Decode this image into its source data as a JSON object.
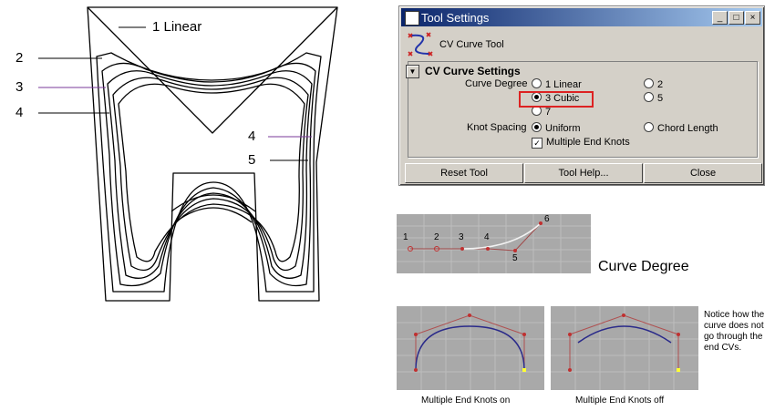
{
  "left_figure": {
    "label_linear": "1 Linear",
    "label_2": "2",
    "label_3": "3",
    "label_4_left": "4",
    "label_4_right": "4",
    "label_5": "5"
  },
  "tool_settings": {
    "title": "Tool Settings",
    "tool_name": "CV Curve Tool",
    "section_title": "CV Curve Settings",
    "curve_degree_label": "Curve Degree",
    "degree_options": [
      "1 Linear",
      "2",
      "3 Cubic",
      "5",
      "7"
    ],
    "selected_degree": "3 Cubic",
    "knot_spacing_label": "Knot Spacing",
    "knot_options": [
      "Uniform",
      "Chord Length"
    ],
    "selected_knot": "Uniform",
    "multiple_end_knots_label": "Multiple End Knots",
    "multiple_end_knots_checked": true,
    "buttons": {
      "reset": "Reset Tool",
      "help": "Tool Help...",
      "close": "Close"
    }
  },
  "curve_degree_panel": {
    "caption": "Curve Degree",
    "cv_labels": [
      "1",
      "2",
      "3",
      "4",
      "5",
      "6"
    ]
  },
  "end_knots": {
    "caption_on": "Multiple End Knots on",
    "caption_off": "Multiple End Knots off",
    "note": "Notice how the curve does not go through the end CVs."
  },
  "colors": {
    "title_bar": "#0a246a",
    "window": "#d4d0c8",
    "highlight": "#dd2222",
    "panel": "#a9a9a9",
    "curve": "#2a2a8a",
    "cv_hull": "#b05050"
  }
}
